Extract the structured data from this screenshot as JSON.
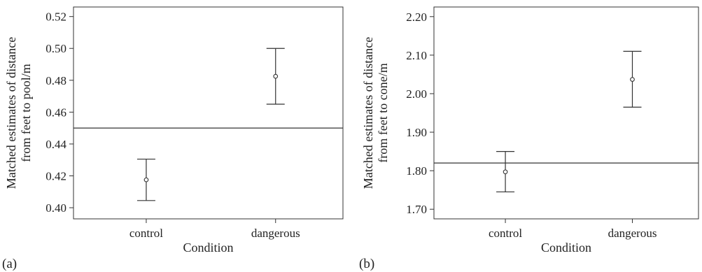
{
  "chart_data": [
    {
      "type": "scatter",
      "panel_label": "(a)",
      "xlabel": "Condition",
      "ylabel_lines": [
        "Matched estimates of distance",
        "from feet to pool/m"
      ],
      "categories": [
        "control",
        "dangerous"
      ],
      "ylim": [
        0.393,
        0.526
      ],
      "yticks": [
        0.4,
        0.42,
        0.44,
        0.46,
        0.48,
        0.5,
        0.52
      ],
      "ytick_labels": [
        "0.40",
        "0.42",
        "0.44",
        "0.46",
        "0.48",
        "0.50",
        "0.52"
      ],
      "means": [
        0.4175,
        0.4825
      ],
      "ci_low": [
        0.4045,
        0.465
      ],
      "ci_high": [
        0.4305,
        0.5
      ],
      "reference_line": 0.45,
      "grid": false
    },
    {
      "type": "scatter",
      "panel_label": "(b)",
      "xlabel": "Condition",
      "ylabel_lines": [
        "Matched estimates of distance",
        "from feet to cone/m"
      ],
      "categories": [
        "control",
        "dangerous"
      ],
      "ylim": [
        1.675,
        2.225
      ],
      "yticks": [
        1.7,
        1.8,
        1.9,
        2.0,
        2.1,
        2.2
      ],
      "ytick_labels": [
        "1.70",
        "1.80",
        "1.90",
        "2.00",
        "2.10",
        "2.20"
      ],
      "means": [
        1.797,
        2.037
      ],
      "ci_low": [
        1.745,
        1.965
      ],
      "ci_high": [
        1.85,
        2.11
      ],
      "reference_line": 1.82,
      "grid": false
    }
  ]
}
